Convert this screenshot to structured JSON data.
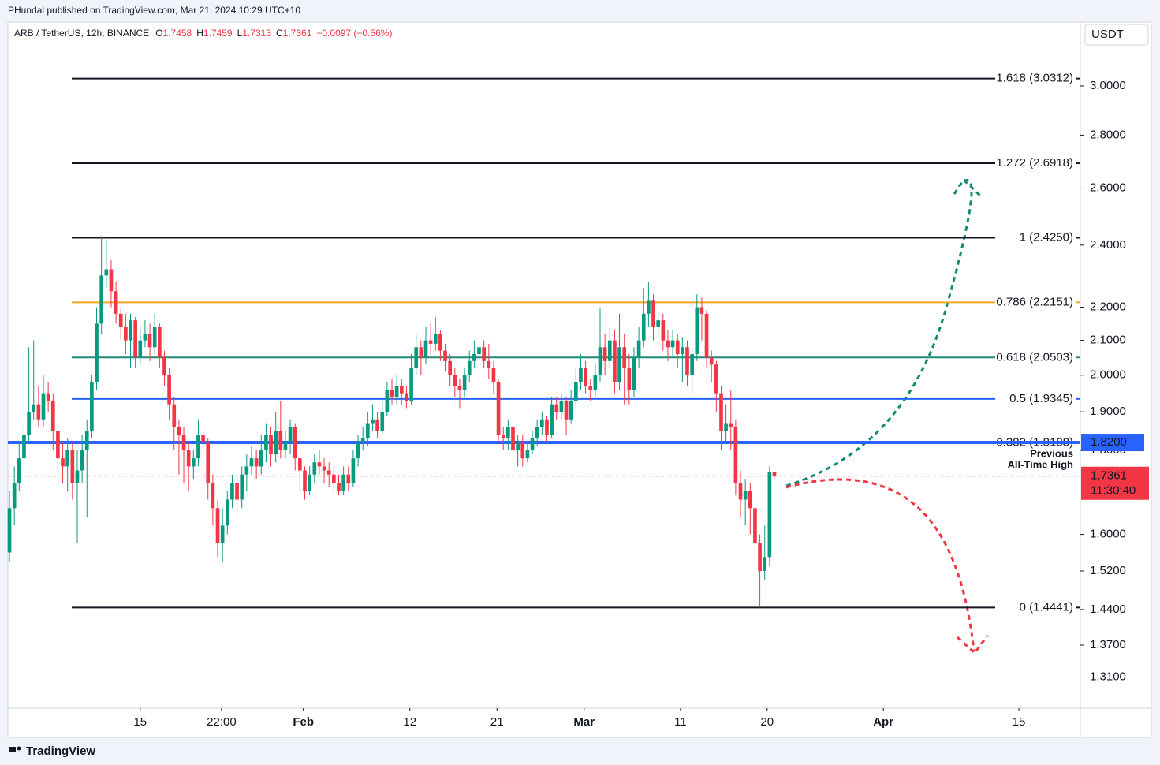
{
  "publisher": "PHundal published on TradingView.com, Mar 21, 2024 10:29 UTC+10",
  "brand": "TradingView",
  "chart_data": {
    "type": "candlestick",
    "symbol": "ARB / TetherUS, 12h, BINANCE",
    "ohlc_keys": [
      "O",
      "H",
      "L",
      "C"
    ],
    "change": "−0.0097 (−0.56%)",
    "currency": "USDT",
    "countdown": "11:30:40",
    "up_color": "#089981",
    "down_color": "#f23645",
    "log_scale": true,
    "ylim": [
      1.254,
      3.281
    ],
    "yticks": [
      {
        "value": 3,
        "label": "3.0000"
      },
      {
        "value": 2.8,
        "label": "2.8000"
      },
      {
        "value": 2.6,
        "label": "2.6000"
      },
      {
        "value": 2.4,
        "label": "2.4000"
      },
      {
        "value": 2.2,
        "label": "2.2000"
      },
      {
        "value": 2.1,
        "label": "2.1000"
      },
      {
        "value": 2,
        "label": "2.0000"
      },
      {
        "value": 1.9,
        "label": "1.9000"
      },
      {
        "value": 1.8,
        "label": "1.8000"
      },
      {
        "value": 1.6,
        "label": "1.6000"
      },
      {
        "value": 1.52,
        "label": "1.5200"
      },
      {
        "value": 1.44,
        "label": "1.4400"
      },
      {
        "value": 1.37,
        "label": "1.3700"
      },
      {
        "value": 1.31,
        "label": "1.3100"
      }
    ],
    "xlim": [
      -0.33,
      221.2
    ],
    "xticks": [
      {
        "value": 27,
        "label": "15"
      },
      {
        "value": 43.8,
        "label": "22:00"
      },
      {
        "value": 60.7,
        "label": "Feb"
      },
      {
        "value": 82.7,
        "label": "12"
      },
      {
        "value": 100.7,
        "label": "21"
      },
      {
        "value": 118.7,
        "label": "Mar"
      },
      {
        "value": 138.6,
        "label": "11"
      },
      {
        "value": 156.5,
        "label": "20"
      },
      {
        "value": 180.5,
        "label": "Apr"
      },
      {
        "value": 208.5,
        "label": "15"
      }
    ],
    "fib_levels": [
      {
        "label": "1.618 (3.0312)",
        "value": 3.0312,
        "color": "#131722"
      },
      {
        "label": "1.272 (2.6918)",
        "value": 2.6918,
        "color": "#131722"
      },
      {
        "label": "1 (2.4250)",
        "value": 2.425,
        "color": "#131722"
      },
      {
        "label": "0.786 (2.2151)",
        "value": 2.2151,
        "color": "#f5a623"
      },
      {
        "label": "0.618 (2.0503)",
        "value": 2.0503,
        "color": "#1f8a7a"
      },
      {
        "label": "0.5 (1.9345)",
        "value": 1.9345,
        "color": "#2962ff"
      },
      {
        "label": "0.382 (1.8188)",
        "value": 1.8188,
        "color": "#787b86"
      },
      {
        "label": "0 (1.4441)",
        "value": 1.4441,
        "color": "#131722"
      }
    ],
    "level": {
      "value": 1.82,
      "label": "1.8200",
      "color": "#2962ff",
      "note": [
        "Previous",
        "All-Time High"
      ]
    },
    "candles": [
      [
        1.56,
        1.7,
        1.54,
        1.66
      ],
      [
        1.66,
        1.76,
        1.62,
        1.72
      ],
      [
        1.72,
        1.82,
        1.7,
        1.78
      ],
      [
        1.78,
        1.88,
        1.75,
        1.84
      ],
      [
        1.84,
        2.08,
        1.82,
        1.9
      ],
      [
        1.9,
        2.1,
        1.88,
        1.92
      ],
      [
        1.92,
        1.97,
        1.86,
        1.88
      ],
      [
        1.88,
        2.0,
        1.86,
        1.95
      ],
      [
        1.95,
        1.98,
        1.9,
        1.93
      ],
      [
        1.93,
        1.95,
        1.8,
        1.85
      ],
      [
        1.85,
        1.87,
        1.74,
        1.78
      ],
      [
        1.78,
        1.82,
        1.72,
        1.76
      ],
      [
        1.76,
        1.83,
        1.7,
        1.8
      ],
      [
        1.8,
        1.82,
        1.68,
        1.72
      ],
      [
        1.72,
        1.8,
        1.58,
        1.75
      ],
      [
        1.75,
        1.84,
        1.72,
        1.8
      ],
      [
        1.8,
        1.88,
        1.64,
        1.85
      ],
      [
        1.85,
        2.0,
        1.83,
        1.98
      ],
      [
        1.98,
        2.2,
        1.96,
        2.15
      ],
      [
        2.15,
        2.43,
        2.12,
        2.3
      ],
      [
        2.3,
        2.42,
        2.26,
        2.32
      ],
      [
        2.32,
        2.35,
        2.2,
        2.25
      ],
      [
        2.25,
        2.28,
        2.15,
        2.18
      ],
      [
        2.18,
        2.2,
        2.1,
        2.14
      ],
      [
        2.14,
        2.18,
        2.06,
        2.1
      ],
      [
        2.1,
        2.18,
        2.02,
        2.16
      ],
      [
        2.16,
        2.17,
        2.02,
        2.05
      ],
      [
        2.05,
        2.14,
        2.03,
        2.1
      ],
      [
        2.1,
        2.16,
        2.08,
        2.12
      ],
      [
        2.12,
        2.15,
        2.04,
        2.08
      ],
      [
        2.08,
        2.18,
        2.06,
        2.14
      ],
      [
        2.14,
        2.15,
        2.02,
        2.05
      ],
      [
        2.05,
        2.07,
        1.97,
        2.0
      ],
      [
        2.0,
        2.02,
        1.88,
        1.92
      ],
      [
        1.92,
        1.94,
        1.8,
        1.86
      ],
      [
        1.86,
        1.88,
        1.74,
        1.84
      ],
      [
        1.84,
        1.86,
        1.72,
        1.8
      ],
      [
        1.8,
        1.82,
        1.7,
        1.76
      ],
      [
        1.76,
        1.8,
        1.73,
        1.78
      ],
      [
        1.78,
        1.88,
        1.76,
        1.84
      ],
      [
        1.84,
        1.86,
        1.78,
        1.82
      ],
      [
        1.82,
        1.83,
        1.68,
        1.72
      ],
      [
        1.72,
        1.74,
        1.62,
        1.66
      ],
      [
        1.66,
        1.68,
        1.55,
        1.58
      ],
      [
        1.58,
        1.66,
        1.54,
        1.62
      ],
      [
        1.62,
        1.7,
        1.6,
        1.68
      ],
      [
        1.68,
        1.74,
        1.66,
        1.72
      ],
      [
        1.72,
        1.74,
        1.65,
        1.68
      ],
      [
        1.68,
        1.76,
        1.66,
        1.74
      ],
      [
        1.74,
        1.79,
        1.7,
        1.76
      ],
      [
        1.76,
        1.81,
        1.74,
        1.78
      ],
      [
        1.78,
        1.8,
        1.73,
        1.76
      ],
      [
        1.76,
        1.84,
        1.74,
        1.8
      ],
      [
        1.8,
        1.87,
        1.77,
        1.84
      ],
      [
        1.84,
        1.86,
        1.76,
        1.79
      ],
      [
        1.79,
        1.9,
        1.77,
        1.85
      ],
      [
        1.85,
        1.93,
        1.78,
        1.8
      ],
      [
        1.8,
        1.85,
        1.78,
        1.82
      ],
      [
        1.82,
        1.88,
        1.79,
        1.86
      ],
      [
        1.86,
        1.87,
        1.75,
        1.78
      ],
      [
        1.78,
        1.79,
        1.7,
        1.75
      ],
      [
        1.75,
        1.76,
        1.68,
        1.7
      ],
      [
        1.7,
        1.76,
        1.69,
        1.74
      ],
      [
        1.74,
        1.79,
        1.72,
        1.77
      ],
      [
        1.77,
        1.8,
        1.74,
        1.76
      ],
      [
        1.76,
        1.78,
        1.72,
        1.75
      ],
      [
        1.75,
        1.77,
        1.71,
        1.74
      ],
      [
        1.74,
        1.76,
        1.7,
        1.72
      ],
      [
        1.72,
        1.74,
        1.69,
        1.7
      ],
      [
        1.7,
        1.76,
        1.69,
        1.74
      ],
      [
        1.74,
        1.76,
        1.7,
        1.72
      ],
      [
        1.72,
        1.8,
        1.71,
        1.78
      ],
      [
        1.78,
        1.84,
        1.76,
        1.82
      ],
      [
        1.82,
        1.86,
        1.8,
        1.83
      ],
      [
        1.83,
        1.9,
        1.81,
        1.87
      ],
      [
        1.87,
        1.92,
        1.85,
        1.88
      ],
      [
        1.88,
        1.9,
        1.83,
        1.85
      ],
      [
        1.85,
        1.93,
        1.84,
        1.9
      ],
      [
        1.9,
        1.98,
        1.89,
        1.96
      ],
      [
        1.96,
        1.99,
        1.92,
        1.94
      ],
      [
        1.94,
        2.0,
        1.92,
        1.97
      ],
      [
        1.97,
        1.99,
        1.92,
        1.95
      ],
      [
        1.95,
        1.97,
        1.91,
        1.93
      ],
      [
        1.93,
        2.06,
        1.92,
        2.02
      ],
      [
        2.02,
        2.12,
        2.0,
        2.08
      ],
      [
        2.08,
        2.1,
        2.0,
        2.05
      ],
      [
        2.05,
        2.14,
        2.03,
        2.1
      ],
      [
        2.1,
        2.15,
        2.06,
        2.09
      ],
      [
        2.09,
        2.17,
        2.07,
        2.12
      ],
      [
        2.12,
        2.13,
        2.04,
        2.07
      ],
      [
        2.07,
        2.09,
        2.01,
        2.04
      ],
      [
        2.04,
        2.06,
        1.97,
        2.0
      ],
      [
        2.0,
        2.02,
        1.94,
        1.97
      ],
      [
        1.97,
        1.99,
        1.91,
        1.96
      ],
      [
        1.96,
        2.02,
        1.94,
        2.0
      ],
      [
        2.0,
        2.07,
        1.98,
        2.04
      ],
      [
        2.04,
        2.1,
        2.02,
        2.06
      ],
      [
        2.06,
        2.11,
        2.04,
        2.08
      ],
      [
        2.08,
        2.1,
        2.02,
        2.04
      ],
      [
        2.04,
        2.09,
        1.99,
        2.02
      ],
      [
        2.02,
        2.04,
        1.95,
        1.98
      ],
      [
        1.98,
        1.99,
        1.82,
        1.84
      ],
      [
        1.84,
        1.86,
        1.8,
        1.83
      ],
      [
        1.83,
        1.88,
        1.8,
        1.86
      ],
      [
        1.86,
        1.87,
        1.77,
        1.8
      ],
      [
        1.8,
        1.84,
        1.76,
        1.82
      ],
      [
        1.82,
        1.84,
        1.76,
        1.78
      ],
      [
        1.78,
        1.82,
        1.77,
        1.8
      ],
      [
        1.8,
        1.85,
        1.79,
        1.83
      ],
      [
        1.83,
        1.88,
        1.81,
        1.86
      ],
      [
        1.86,
        1.9,
        1.84,
        1.88
      ],
      [
        1.88,
        1.89,
        1.82,
        1.84
      ],
      [
        1.84,
        1.94,
        1.83,
        1.92
      ],
      [
        1.92,
        1.94,
        1.88,
        1.9
      ],
      [
        1.9,
        1.95,
        1.88,
        1.93
      ],
      [
        1.93,
        1.94,
        1.84,
        1.88
      ],
      [
        1.88,
        1.96,
        1.87,
        1.93
      ],
      [
        1.93,
        2.02,
        1.91,
        1.98
      ],
      [
        1.98,
        2.06,
        1.96,
        2.02
      ],
      [
        2.02,
        2.04,
        1.95,
        1.97
      ],
      [
        1.97,
        1.99,
        1.93,
        1.96
      ],
      [
        1.96,
        2.03,
        1.94,
        2.0
      ],
      [
        2.0,
        2.2,
        1.98,
        2.08
      ],
      [
        2.08,
        2.12,
        2.0,
        2.04
      ],
      [
        2.04,
        2.14,
        2.02,
        2.1
      ],
      [
        2.1,
        2.13,
        1.95,
        1.98
      ],
      [
        1.98,
        2.18,
        1.96,
        2.08
      ],
      [
        2.08,
        2.12,
        1.92,
        2.02
      ],
      [
        2.02,
        2.06,
        1.92,
        1.96
      ],
      [
        1.96,
        2.08,
        1.94,
        2.05
      ],
      [
        2.05,
        2.14,
        2.02,
        2.1
      ],
      [
        2.1,
        2.26,
        2.08,
        2.18
      ],
      [
        2.18,
        2.28,
        2.14,
        2.22
      ],
      [
        2.22,
        2.24,
        2.1,
        2.14
      ],
      [
        2.14,
        2.19,
        2.11,
        2.16
      ],
      [
        2.16,
        2.18,
        2.07,
        2.1
      ],
      [
        2.1,
        2.13,
        2.04,
        2.08
      ],
      [
        2.08,
        2.13,
        2.05,
        2.1
      ],
      [
        2.1,
        2.12,
        2.02,
        2.06
      ],
      [
        2.06,
        2.11,
        1.98,
        2.08
      ],
      [
        2.08,
        2.1,
        1.97,
        2.0
      ],
      [
        2.0,
        2.08,
        1.95,
        2.06
      ],
      [
        2.06,
        2.24,
        2.04,
        2.2
      ],
      [
        2.2,
        2.23,
        2.1,
        2.18
      ],
      [
        2.18,
        2.19,
        2.02,
        2.05
      ],
      [
        2.05,
        2.07,
        1.98,
        2.03
      ],
      [
        2.03,
        2.04,
        1.9,
        1.95
      ],
      [
        1.95,
        1.97,
        1.8,
        1.85
      ],
      [
        1.85,
        1.92,
        1.82,
        1.87
      ],
      [
        1.87,
        1.96,
        1.8,
        1.86
      ],
      [
        1.86,
        1.88,
        1.69,
        1.72
      ],
      [
        1.72,
        1.75,
        1.64,
        1.68
      ],
      [
        1.68,
        1.73,
        1.62,
        1.7
      ],
      [
        1.7,
        1.72,
        1.6,
        1.66
      ],
      [
        1.66,
        1.68,
        1.54,
        1.58
      ],
      [
        1.58,
        1.6,
        1.444,
        1.52
      ],
      [
        1.52,
        1.62,
        1.5,
        1.55
      ],
      [
        1.55,
        1.76,
        1.53,
        1.7458
      ],
      [
        1.7458,
        1.7459,
        1.7313,
        1.7361
      ]
    ]
  }
}
